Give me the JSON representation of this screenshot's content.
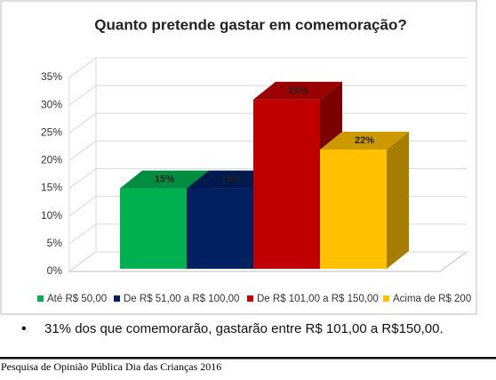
{
  "chart_data": {
    "type": "bar",
    "title": "Quanto pretende gastar em comemoração?",
    "series": [
      {
        "name": "Até R$ 50,00",
        "color": "#00b050",
        "values": [
          15
        ],
        "value_labels": [
          "15%"
        ]
      },
      {
        "name": "De R$ 51,00 a R$ 100,00",
        "color": "#002060",
        "values": [
          15
        ],
        "value_labels": [
          "15%"
        ]
      },
      {
        "name": "De R$ 101,00 a R$ 150,00",
        "color": "#c00000",
        "values": [
          31
        ],
        "value_labels": [
          "31%"
        ]
      },
      {
        "name": "Acima de R$ 200",
        "color": "#ffc000",
        "values": [
          22
        ],
        "value_labels": [
          "22%"
        ]
      }
    ],
    "ylim": [
      0,
      35
    ],
    "yticks": [
      {
        "value": 0,
        "label": "0%"
      },
      {
        "value": 5,
        "label": "5%"
      },
      {
        "value": 10,
        "label": "10%"
      },
      {
        "value": 15,
        "label": "15%"
      },
      {
        "value": 20,
        "label": "20%"
      },
      {
        "value": 25,
        "label": "25%"
      },
      {
        "value": 30,
        "label": "30%"
      },
      {
        "value": 35,
        "label": "35%"
      }
    ],
    "grid": true
  },
  "bullet": "31% dos que comemorarão, gastarão entre R$ 101,00 a R$150,00.",
  "footer": "Pesquisa de Opinião Pública Dia das Crianças 2016"
}
